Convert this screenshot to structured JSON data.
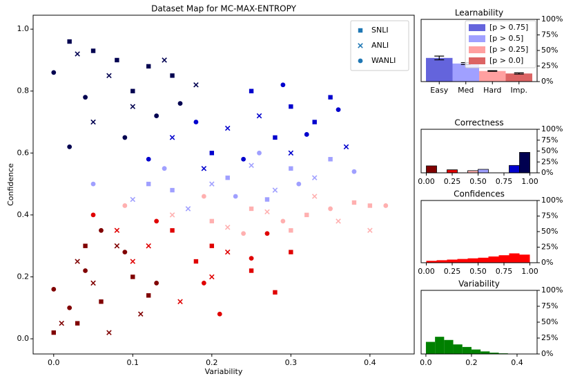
{
  "chart_data": [
    {
      "type": "scatter",
      "title": "Dataset Map for MC-MAX-ENTROPY",
      "x_label": "Variability",
      "y_label": "Confidence",
      "xlim": [
        -0.026,
        0.456
      ],
      "ylim": [
        -0.049,
        1.045
      ],
      "xticks": [
        {
          "value": 0,
          "label": "0.0"
        },
        0.1,
        0.2,
        0.3,
        0.4
      ],
      "yticks": [
        {
          "value": 0,
          "label": "0.0"
        },
        0.2,
        0.4,
        0.6,
        0.8,
        {
          "value": 1,
          "label": "1.0"
        }
      ],
      "legend": "upper right",
      "series": [
        {
          "name": "SNLI",
          "marker": "square",
          "color": "#1f77b4",
          "x": [
            0.02,
            0.05,
            0.08,
            0.12,
            0.15,
            0.1,
            0.25,
            0.3,
            0.35,
            0.28,
            0.2,
            0.33,
            0.22,
            0.3,
            0.15,
            0.27,
            0.12,
            0.35,
            0.25,
            0.32,
            0.38,
            0.2,
            0.4,
            0.3,
            0.2,
            0.25,
            0.15,
            0.28,
            0.18,
            0.3,
            0.0,
            0.03,
            0.06,
            0.1,
            0.04,
            0.12
          ],
          "values": [
            0.96,
            0.93,
            0.9,
            0.88,
            0.85,
            0.8,
            0.8,
            0.75,
            0.78,
            0.65,
            0.6,
            0.7,
            0.52,
            0.55,
            0.48,
            0.45,
            0.5,
            0.58,
            0.42,
            0.4,
            0.44,
            0.38,
            0.43,
            0.35,
            0.3,
            0.22,
            0.35,
            0.15,
            0.25,
            0.28,
            0.02,
            0.05,
            0.12,
            0.2,
            0.3,
            0.14
          ],
          "point_colors": [
            "#000050",
            "#000050",
            "#000050",
            "#000050",
            "#000050",
            "#000050",
            "#0000cd",
            "#0000cd",
            "#0000cd",
            "#0000cd",
            "#0000cd",
            "#0000cd",
            "#a0a0ff",
            "#a0a0ff",
            "#a0a0ff",
            "#a0a0ff",
            "#a0a0ff",
            "#a0a0ff",
            "#ffb0b0",
            "#ffb0b0",
            "#ffb0b0",
            "#ffb0b0",
            "#ffb0b0",
            "#ffb0b0",
            "#e00000",
            "#e00000",
            "#e00000",
            "#e00000",
            "#e00000",
            "#e00000",
            "#800000",
            "#800000",
            "#800000",
            "#800000",
            "#800000",
            "#800000"
          ]
        },
        {
          "name": "ANLI",
          "marker": "x",
          "color": "#1f77b4",
          "x": [
            0.03,
            0.07,
            0.1,
            0.14,
            0.18,
            0.05,
            0.15,
            0.22,
            0.3,
            0.26,
            0.37,
            0.19,
            0.1,
            0.2,
            0.28,
            0.33,
            0.17,
            0.25,
            0.15,
            0.22,
            0.33,
            0.36,
            0.27,
            0.4,
            0.08,
            0.12,
            0.2,
            0.16,
            0.22,
            0.1,
            0.01,
            0.05,
            0.08,
            0.03,
            0.11,
            0.07
          ],
          "values": [
            0.92,
            0.85,
            0.75,
            0.9,
            0.82,
            0.7,
            0.65,
            0.68,
            0.6,
            0.72,
            0.62,
            0.55,
            0.45,
            0.5,
            0.48,
            0.52,
            0.42,
            0.56,
            0.4,
            0.36,
            0.46,
            0.38,
            0.41,
            0.35,
            0.35,
            0.3,
            0.2,
            0.12,
            0.28,
            0.25,
            0.05,
            0.18,
            0.3,
            0.25,
            0.08,
            0.02
          ],
          "point_colors": [
            "#000050",
            "#000050",
            "#000050",
            "#000050",
            "#000050",
            "#000050",
            "#0000cd",
            "#0000cd",
            "#0000cd",
            "#0000cd",
            "#0000cd",
            "#0000cd",
            "#a0a0ff",
            "#a0a0ff",
            "#a0a0ff",
            "#a0a0ff",
            "#a0a0ff",
            "#a0a0ff",
            "#ffb0b0",
            "#ffb0b0",
            "#ffb0b0",
            "#ffb0b0",
            "#ffb0b0",
            "#ffb0b0",
            "#e00000",
            "#e00000",
            "#e00000",
            "#e00000",
            "#e00000",
            "#e00000",
            "#800000",
            "#800000",
            "#800000",
            "#800000",
            "#800000",
            "#800000"
          ]
        },
        {
          "name": "WANLI",
          "marker": "circle",
          "color": "#1f77b4",
          "x": [
            0.0,
            0.04,
            0.09,
            0.13,
            0.02,
            0.16,
            0.12,
            0.18,
            0.24,
            0.32,
            0.29,
            0.36,
            0.05,
            0.14,
            0.23,
            0.31,
            0.38,
            0.26,
            0.09,
            0.19,
            0.29,
            0.35,
            0.42,
            0.24,
            0.05,
            0.13,
            0.19,
            0.25,
            0.21,
            0.27,
            0.0,
            0.02,
            0.04,
            0.06,
            0.09,
            0.13
          ],
          "values": [
            0.86,
            0.78,
            0.65,
            0.72,
            0.62,
            0.76,
            0.58,
            0.7,
            0.58,
            0.66,
            0.82,
            0.74,
            0.5,
            0.55,
            0.46,
            0.5,
            0.54,
            0.6,
            0.43,
            0.46,
            0.38,
            0.42,
            0.43,
            0.34,
            0.4,
            0.38,
            0.18,
            0.26,
            0.08,
            0.34,
            0.16,
            0.1,
            0.22,
            0.35,
            0.28,
            0.18
          ],
          "point_colors": [
            "#000050",
            "#000050",
            "#000050",
            "#000050",
            "#000050",
            "#000050",
            "#0000cd",
            "#0000cd",
            "#0000cd",
            "#0000cd",
            "#0000cd",
            "#0000cd",
            "#a0a0ff",
            "#a0a0ff",
            "#a0a0ff",
            "#a0a0ff",
            "#a0a0ff",
            "#a0a0ff",
            "#ffb0b0",
            "#ffb0b0",
            "#ffb0b0",
            "#ffb0b0",
            "#ffb0b0",
            "#ffb0b0",
            "#e00000",
            "#e00000",
            "#e00000",
            "#e00000",
            "#e00000",
            "#e00000",
            "#800000",
            "#800000",
            "#800000",
            "#800000",
            "#800000",
            "#800000"
          ]
        }
      ]
    },
    {
      "type": "bar",
      "title": "Learnability",
      "categories": [
        "Easy",
        "Med",
        "Hard",
        "Imp."
      ],
      "values": [
        38,
        29,
        17,
        13
      ],
      "errors": [
        3,
        1.5,
        0.5,
        1
      ],
      "colors": [
        "#6464dc",
        "#a0a0ff",
        "#ffa0a0",
        "#dc6464"
      ],
      "legend_labels": [
        "[p > 0.75]",
        "[p > 0.5]",
        "[p > 0.25]",
        "[p > 0.0]"
      ],
      "legend": "upper right",
      "ylim": [
        0,
        100
      ],
      "yticks": [
        {
          "value": 0,
          "label": "0%"
        },
        {
          "value": 25,
          "label": "25%"
        },
        {
          "value": 50,
          "label": "50%"
        },
        {
          "value": 75,
          "label": "75%"
        },
        {
          "value": 100,
          "label": "100%"
        }
      ]
    },
    {
      "type": "histogram",
      "title": "Correctness",
      "bins": [
        0,
        0.1,
        0.2,
        0.3,
        0.4,
        0.5,
        0.6,
        0.7,
        0.8,
        0.9,
        1.0
      ],
      "values": [
        16,
        0,
        7,
        0,
        5,
        8,
        0,
        0,
        17,
        47
      ],
      "colors": [
        "#800000",
        "#800000",
        "#e00000",
        "#e00000",
        "#ffb0b0",
        "#a0a0ff",
        "#a0a0ff",
        "#0000cd",
        "#0000cd",
        "#000050"
      ],
      "xlim": [
        -0.05,
        1.07
      ],
      "xticks": [
        {
          "value": 0,
          "label": "0.00"
        },
        0.25,
        {
          "value": 0.5,
          "label": "0.50"
        },
        0.75,
        {
          "value": 1,
          "label": "1.00"
        }
      ],
      "ylim": [
        0,
        100
      ],
      "yticks": [
        {
          "value": 0,
          "label": "0%"
        },
        {
          "value": 25,
          "label": "25%"
        },
        {
          "value": 50,
          "label": "50%"
        },
        {
          "value": 75,
          "label": "75%"
        },
        {
          "value": 100,
          "label": "100%"
        }
      ]
    },
    {
      "type": "histogram",
      "title": "Confidences",
      "bins": [
        0,
        0.1,
        0.2,
        0.3,
        0.4,
        0.5,
        0.6,
        0.7,
        0.8,
        0.9,
        1.0
      ],
      "values": [
        3,
        4,
        5,
        6,
        7,
        8,
        10,
        12,
        15,
        13
      ],
      "color": "#ff0000",
      "xlim": [
        -0.05,
        1.07
      ],
      "xticks": [
        {
          "value": 0,
          "label": "0.00"
        },
        0.25,
        {
          "value": 0.5,
          "label": "0.50"
        },
        0.75,
        {
          "value": 1,
          "label": "1.00"
        }
      ],
      "ylim": [
        0,
        100
      ],
      "yticks": [
        {
          "value": 0,
          "label": "0%"
        },
        {
          "value": 25,
          "label": "25%"
        },
        {
          "value": 50,
          "label": "50%"
        },
        {
          "value": 75,
          "label": "75%"
        },
        {
          "value": 100,
          "label": "100%"
        }
      ]
    },
    {
      "type": "histogram",
      "title": "Variability",
      "bins": [
        0,
        0.04,
        0.08,
        0.12,
        0.16,
        0.2,
        0.24,
        0.28,
        0.32,
        0.36,
        0.4,
        0.44
      ],
      "values": [
        19,
        27,
        22,
        15,
        11,
        7,
        4,
        2,
        1,
        0.5,
        0.3
      ],
      "color": "#008000",
      "xlim": [
        -0.021,
        0.488
      ],
      "xticks": [
        {
          "value": 0,
          "label": "0.0"
        },
        0.2,
        0.4
      ],
      "ylim": [
        0,
        100
      ],
      "yticks": [
        {
          "value": 0,
          "label": "0%"
        },
        {
          "value": 25,
          "label": "25%"
        },
        {
          "value": 50,
          "label": "50%"
        },
        {
          "value": 75,
          "label": "75%"
        },
        {
          "value": 100,
          "label": "100%"
        }
      ]
    }
  ]
}
